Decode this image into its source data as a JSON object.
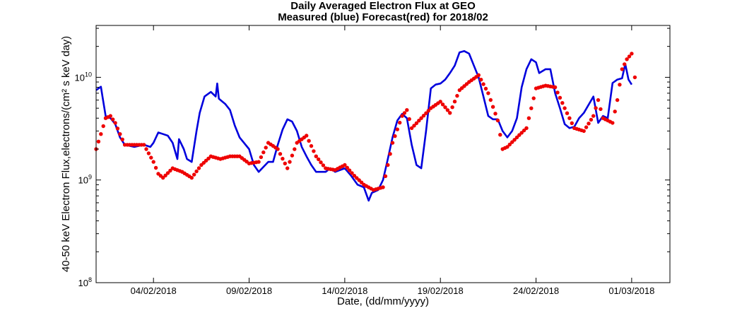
{
  "chart_data": {
    "type": "line",
    "title": "Daily Averaged Electron Flux at GEO",
    "subtitle": "Measured (blue) Forecast(red) for 2018/02",
    "xlabel": "Date, (dd/mm/yyyy)",
    "ylabel": "40-50 keV Electron Flux,electrons/(cm² s keV day)",
    "y_scale": "log",
    "x_range": [
      "2018-02-01T00:00",
      "2018-03-03T00:00"
    ],
    "ylim": [
      100000000.0,
      32000000000.0
    ],
    "grid": false,
    "x_ticks": [
      {
        "value": "2018-02-04T00:00",
        "label": "04/02/2018"
      },
      {
        "value": "2018-02-09T00:00",
        "label": "09/02/2018"
      },
      {
        "value": "2018-02-14T00:00",
        "label": "14/02/2018"
      },
      {
        "value": "2018-02-19T00:00",
        "label": "19/02/2018"
      },
      {
        "value": "2018-02-24T00:00",
        "label": "24/02/2018"
      },
      {
        "value": "2018-03-01T00:00",
        "label": "01/03/2018"
      }
    ],
    "y_ticks": [
      {
        "value": 100000000.0,
        "base": "10",
        "exp": "8"
      },
      {
        "value": 1000000000.0,
        "base": "10",
        "exp": "9"
      },
      {
        "value": 10000000000.0,
        "base": "10",
        "exp": "10"
      }
    ],
    "series": [
      {
        "color": "#0000dd",
        "style": "line",
        "points": [
          [
            "2018-02-01T00:00",
            7500000000.0
          ],
          [
            "2018-02-01T06:00",
            8100000000.0
          ],
          [
            "2018-02-01T08:00",
            6500000000.0
          ],
          [
            "2018-02-01T12:00",
            4200000000.0
          ],
          [
            "2018-02-01T18:00",
            4000000000.0
          ],
          [
            "2018-02-02T00:00",
            3500000000.0
          ],
          [
            "2018-02-02T06:00",
            2600000000.0
          ],
          [
            "2018-02-02T12:00",
            2200000000.0
          ],
          [
            "2018-02-03T00:00",
            2100000000.0
          ],
          [
            "2018-02-03T12:00",
            2200000000.0
          ],
          [
            "2018-02-03T20:00",
            2100000000.0
          ],
          [
            "2018-02-04T00:00",
            2300000000.0
          ],
          [
            "2018-02-04T06:00",
            2900000000.0
          ],
          [
            "2018-02-04T12:00",
            2800000000.0
          ],
          [
            "2018-02-04T18:00",
            2700000000.0
          ],
          [
            "2018-02-05T00:00",
            2300000000.0
          ],
          [
            "2018-02-05T06:00",
            1600000000.0
          ],
          [
            "2018-02-05T08:00",
            2500000000.0
          ],
          [
            "2018-02-05T14:00",
            2000000000.0
          ],
          [
            "2018-02-05T18:00",
            1600000000.0
          ],
          [
            "2018-02-06T00:00",
            1500000000.0
          ],
          [
            "2018-02-06T06:00",
            3000000000.0
          ],
          [
            "2018-02-06T10:00",
            4500000000.0
          ],
          [
            "2018-02-06T16:00",
            6500000000.0
          ],
          [
            "2018-02-07T00:00",
            7200000000.0
          ],
          [
            "2018-02-07T06:00",
            6500000000.0
          ],
          [
            "2018-02-07T08:00",
            8700000000.0
          ],
          [
            "2018-02-07T10:00",
            6200000000.0
          ],
          [
            "2018-02-07T18:00",
            5500000000.0
          ],
          [
            "2018-02-08T00:00",
            4800000000.0
          ],
          [
            "2018-02-08T06:00",
            3400000000.0
          ],
          [
            "2018-02-08T12:00",
            2600000000.0
          ],
          [
            "2018-02-09T00:00",
            2000000000.0
          ],
          [
            "2018-02-09T06:00",
            1400000000.0
          ],
          [
            "2018-02-09T12:00",
            1200000000.0
          ],
          [
            "2018-02-10T00:00",
            1500000000.0
          ],
          [
            "2018-02-10T06:00",
            1500000000.0
          ],
          [
            "2018-02-10T12:00",
            2200000000.0
          ],
          [
            "2018-02-10T18:00",
            3100000000.0
          ],
          [
            "2018-02-11T00:00",
            3900000000.0
          ],
          [
            "2018-02-11T06:00",
            3700000000.0
          ],
          [
            "2018-02-11T12:00",
            3000000000.0
          ],
          [
            "2018-02-11T18:00",
            2100000000.0
          ],
          [
            "2018-02-12T00:00",
            1700000000.0
          ],
          [
            "2018-02-12T06:00",
            1400000000.0
          ],
          [
            "2018-02-12T12:00",
            1200000000.0
          ],
          [
            "2018-02-13T00:00",
            1200000000.0
          ],
          [
            "2018-02-13T06:00",
            1300000000.0
          ],
          [
            "2018-02-13T12:00",
            1200000000.0
          ],
          [
            "2018-02-14T00:00",
            1300000000.0
          ],
          [
            "2018-02-14T08:00",
            1100000000.0
          ],
          [
            "2018-02-14T16:00",
            900000000.0
          ],
          [
            "2018-02-15T00:00",
            850000000.0
          ],
          [
            "2018-02-15T06:00",
            630000000.0
          ],
          [
            "2018-02-15T10:00",
            750000000.0
          ],
          [
            "2018-02-15T18:00",
            800000000.0
          ],
          [
            "2018-02-16T00:00",
            1000000000.0
          ],
          [
            "2018-02-16T06:00",
            1600000000.0
          ],
          [
            "2018-02-16T12:00",
            2600000000.0
          ],
          [
            "2018-02-16T18:00",
            3800000000.0
          ],
          [
            "2018-02-17T00:00",
            4400000000.0
          ],
          [
            "2018-02-17T06:00",
            4000000000.0
          ],
          [
            "2018-02-17T12:00",
            2200000000.0
          ],
          [
            "2018-02-17T18:00",
            1400000000.0
          ],
          [
            "2018-02-18T00:00",
            1300000000.0
          ],
          [
            "2018-02-18T06:00",
            3000000000.0
          ],
          [
            "2018-02-18T12:00",
            7800000000.0
          ],
          [
            "2018-02-18T18:00",
            8500000000.0
          ],
          [
            "2018-02-19T00:00",
            8700000000.0
          ],
          [
            "2018-02-19T06:00",
            9500000000.0
          ],
          [
            "2018-02-19T12:00",
            11000000000.0
          ],
          [
            "2018-02-19T18:00",
            13000000000.0
          ],
          [
            "2018-02-20T00:00",
            17500000000.0
          ],
          [
            "2018-02-20T06:00",
            18000000000.0
          ],
          [
            "2018-02-20T12:00",
            17000000000.0
          ],
          [
            "2018-02-20T18:00",
            13000000000.0
          ],
          [
            "2018-02-21T00:00",
            10000000000.0
          ],
          [
            "2018-02-21T06:00",
            6500000000.0
          ],
          [
            "2018-02-21T12:00",
            4200000000.0
          ],
          [
            "2018-02-21T18:00",
            3900000000.0
          ],
          [
            "2018-02-22T00:00",
            3900000000.0
          ],
          [
            "2018-02-22T06:00",
            3000000000.0
          ],
          [
            "2018-02-22T12:00",
            2600000000.0
          ],
          [
            "2018-02-22T18:00",
            3000000000.0
          ],
          [
            "2018-02-23T00:00",
            4000000000.0
          ],
          [
            "2018-02-23T06:00",
            8000000000.0
          ],
          [
            "2018-02-23T12:00",
            12000000000.0
          ],
          [
            "2018-02-23T18:00",
            15000000000.0
          ],
          [
            "2018-02-24T00:00",
            14000000000.0
          ],
          [
            "2018-02-24T04:00",
            11000000000.0
          ],
          [
            "2018-02-24T12:00",
            12000000000.0
          ],
          [
            "2018-02-24T18:00",
            12000000000.0
          ],
          [
            "2018-02-25T00:00",
            7000000000.0
          ],
          [
            "2018-02-25T06:00",
            5000000000.0
          ],
          [
            "2018-02-25T12:00",
            3500000000.0
          ],
          [
            "2018-02-25T18:00",
            3200000000.0
          ],
          [
            "2018-02-26T00:00",
            3300000000.0
          ],
          [
            "2018-02-26T06:00",
            4000000000.0
          ],
          [
            "2018-02-26T12:00",
            4500000000.0
          ],
          [
            "2018-02-27T00:00",
            6500000000.0
          ],
          [
            "2018-02-27T06:00",
            3600000000.0
          ],
          [
            "2018-02-27T12:00",
            4200000000.0
          ],
          [
            "2018-02-27T18:00",
            4000000000.0
          ],
          [
            "2018-02-28T00:00",
            8800000000.0
          ],
          [
            "2018-02-28T06:00",
            9500000000.0
          ],
          [
            "2018-02-28T12:00",
            9800000000.0
          ],
          [
            "2018-02-28T16:00",
            13500000000.0
          ],
          [
            "2018-02-28T20:00",
            9500000000.0
          ],
          [
            "2018-03-01T00:00",
            8500000000.0
          ]
        ]
      },
      {
        "color": "#ee0000",
        "style": "dots",
        "points": [
          [
            "2018-02-01T00:00",
            2000000000.0
          ],
          [
            "2018-02-01T06:00",
            2800000000.0
          ],
          [
            "2018-02-01T12:00",
            4000000000.0
          ],
          [
            "2018-02-01T18:00",
            4200000000.0
          ],
          [
            "2018-02-02T00:00",
            3600000000.0
          ],
          [
            "2018-02-02T06:00",
            2800000000.0
          ],
          [
            "2018-02-02T12:00",
            2200000000.0
          ],
          [
            "2018-02-03T00:00",
            2200000000.0
          ],
          [
            "2018-02-03T12:00",
            2200000000.0
          ],
          [
            "2018-02-04T00:00",
            1500000000.0
          ],
          [
            "2018-02-04T06:00",
            1150000000.0
          ],
          [
            "2018-02-04T12:00",
            1050000000.0
          ],
          [
            "2018-02-05T00:00",
            1300000000.0
          ],
          [
            "2018-02-05T12:00",
            1200000000.0
          ],
          [
            "2018-02-06T00:00",
            1050000000.0
          ],
          [
            "2018-02-06T12:00",
            1400000000.0
          ],
          [
            "2018-02-07T00:00",
            1700000000.0
          ],
          [
            "2018-02-07T12:00",
            1600000000.0
          ],
          [
            "2018-02-08T00:00",
            1700000000.0
          ],
          [
            "2018-02-08T12:00",
            1700000000.0
          ],
          [
            "2018-02-09T00:00",
            1450000000.0
          ],
          [
            "2018-02-09T12:00",
            1500000000.0
          ],
          [
            "2018-02-10T00:00",
            2300000000.0
          ],
          [
            "2018-02-10T12:00",
            2000000000.0
          ],
          [
            "2018-02-11T00:00",
            1300000000.0
          ],
          [
            "2018-02-11T12:00",
            2300000000.0
          ],
          [
            "2018-02-12T00:00",
            2700000000.0
          ],
          [
            "2018-02-12T12:00",
            1700000000.0
          ],
          [
            "2018-02-13T00:00",
            1300000000.0
          ],
          [
            "2018-02-13T12:00",
            1250000000.0
          ],
          [
            "2018-02-14T00:00",
            1400000000.0
          ],
          [
            "2018-02-14T12:00",
            1100000000.0
          ],
          [
            "2018-02-15T00:00",
            900000000.0
          ],
          [
            "2018-02-15T12:00",
            800000000.0
          ],
          [
            "2018-02-16T00:00",
            850000000.0
          ],
          [
            "2018-02-16T12:00",
            2300000000.0
          ],
          [
            "2018-02-17T00:00",
            4200000000.0
          ],
          [
            "2018-02-17T06:00",
            4800000000.0
          ],
          [
            "2018-02-17T12:00",
            3200000000.0
          ],
          [
            "2018-02-18T00:00",
            4000000000.0
          ],
          [
            "2018-02-18T12:00",
            5000000000.0
          ],
          [
            "2018-02-19T00:00",
            5800000000.0
          ],
          [
            "2018-02-19T12:00",
            4500000000.0
          ],
          [
            "2018-02-20T00:00",
            7500000000.0
          ],
          [
            "2018-02-20T12:00",
            9000000000.0
          ],
          [
            "2018-02-21T00:00",
            10500000000.0
          ],
          [
            "2018-02-21T12:00",
            7000000000.0
          ],
          [
            "2018-02-22T00:00",
            3800000000.0
          ],
          [
            "2018-02-22T06:00",
            2000000000.0
          ],
          [
            "2018-02-22T12:00",
            2100000000.0
          ],
          [
            "2018-02-23T00:00",
            2600000000.0
          ],
          [
            "2018-02-23T12:00",
            3200000000.0
          ],
          [
            "2018-02-24T00:00",
            7800000000.0
          ],
          [
            "2018-02-24T12:00",
            8300000000.0
          ],
          [
            "2018-02-25T00:00",
            8000000000.0
          ],
          [
            "2018-02-25T12:00",
            5000000000.0
          ],
          [
            "2018-02-26T00:00",
            3200000000.0
          ],
          [
            "2018-02-26T12:00",
            3000000000.0
          ],
          [
            "2018-02-27T00:00",
            4200000000.0
          ],
          [
            "2018-02-27T06:00",
            6000000000.0
          ],
          [
            "2018-02-27T12:00",
            4000000000.0
          ],
          [
            "2018-02-28T00:00",
            3600000000.0
          ],
          [
            "2018-02-28T06:00",
            6000000000.0
          ],
          [
            "2018-02-28T12:00",
            12000000000.0
          ],
          [
            "2018-02-28T18:00",
            15000000000.0
          ],
          [
            "2018-03-01T00:00",
            17000000000.0
          ],
          [
            "2018-03-01T04:00",
            10000000000.0
          ]
        ]
      }
    ]
  }
}
